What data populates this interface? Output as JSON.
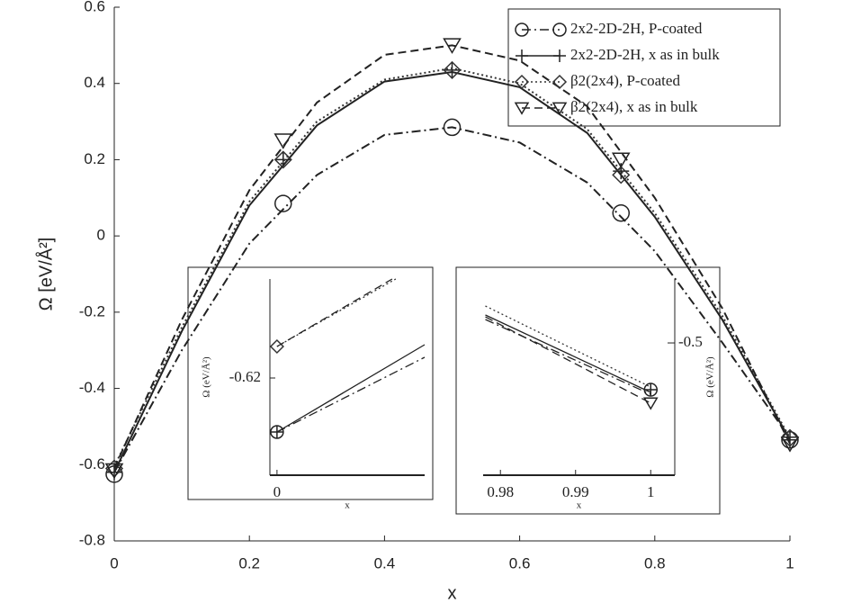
{
  "chart_data": [
    {
      "type": "line",
      "x_label": "x",
      "y_label": "Ω [eV/Å²]",
      "xlim": [
        0,
        1
      ],
      "ylim": [
        -0.8,
        0.6
      ],
      "xticks": [
        0,
        0.2,
        0.4,
        0.6,
        0.8,
        1
      ],
      "yticks": [
        -0.8,
        -0.6,
        -0.4,
        -0.2,
        0,
        0.2,
        0.4,
        0.6
      ],
      "legend": "upper right",
      "series": [
        {
          "name": "2x2-2D-2H, P-coated",
          "color": "#222",
          "dash": "dashdot",
          "marker": "circle",
          "x": [
            0,
            0.1,
            0.2,
            0.3,
            0.4,
            0.5,
            0.6,
            0.7,
            0.8,
            0.9,
            1
          ],
          "values": [
            -0.62,
            -0.3,
            -0.02,
            0.16,
            0.265,
            0.285,
            0.245,
            0.14,
            -0.04,
            -0.28,
            -0.53
          ],
          "marker_x": [
            0,
            0.25,
            0.5,
            0.75,
            1
          ],
          "marker_values": [
            -0.625,
            0.085,
            0.285,
            0.06,
            -0.535
          ]
        },
        {
          "name": "2x2-2D-2H, x as in bulk",
          "color": "#222",
          "dash": "solid",
          "marker": "plus",
          "x": [
            0,
            0.1,
            0.2,
            0.3,
            0.4,
            0.5,
            0.6,
            0.7,
            0.8,
            0.9,
            1
          ],
          "values": [
            -0.62,
            -0.25,
            0.08,
            0.29,
            0.405,
            0.43,
            0.39,
            0.27,
            0.05,
            -0.22,
            -0.535
          ],
          "marker_x": [
            0,
            0.25,
            0.5,
            0.75,
            1
          ],
          "marker_values": [
            -0.62,
            0.2,
            0.435,
            0.17,
            -0.535
          ]
        },
        {
          "name": "β2(2x4), P-coated",
          "color": "#333",
          "dash": "dotted",
          "marker": "diamond",
          "x": [
            0,
            0.1,
            0.2,
            0.3,
            0.4,
            0.5,
            0.6,
            0.7,
            0.8,
            0.9,
            1
          ],
          "values": [
            -0.605,
            -0.24,
            0.09,
            0.3,
            0.41,
            0.44,
            0.4,
            0.28,
            0.06,
            -0.21,
            -0.53
          ],
          "marker_x": [
            0,
            0.25,
            0.5,
            0.75,
            1
          ],
          "marker_values": [
            -0.61,
            0.2,
            0.435,
            0.16,
            -0.53
          ]
        },
        {
          "name": "β2(2x4), x as in bulk",
          "color": "#222",
          "dash": "dashed",
          "marker": "triangle",
          "x": [
            0,
            0.1,
            0.2,
            0.3,
            0.4,
            0.5,
            0.6,
            0.7,
            0.8,
            0.9,
            1
          ],
          "values": [
            -0.61,
            -0.22,
            0.12,
            0.35,
            0.475,
            0.5,
            0.46,
            0.34,
            0.1,
            -0.19,
            -0.545
          ],
          "marker_x": [
            0,
            0.25,
            0.5,
            0.75,
            1
          ],
          "marker_values": [
            -0.615,
            0.25,
            0.5,
            0.2,
            -0.545
          ]
        }
      ]
    },
    {
      "type": "line",
      "x_label": "x",
      "y_label": "Ω (eV/Å²)",
      "xlim": [
        -0.0012,
        0.025
      ],
      "ylim": [
        -0.6308,
        -0.609
      ],
      "xticks": [
        0
      ],
      "yticks": [
        -0.62
      ],
      "y_axis_side": "left",
      "series": [
        {
          "color": "#222",
          "dash": "dashdot",
          "marker": "circle",
          "x": [
            0,
            0.025
          ],
          "values": [
            -0.626,
            -0.6177
          ],
          "marker_x": [
            0
          ],
          "marker_values": [
            -0.626
          ]
        },
        {
          "color": "#222",
          "dash": "solid",
          "marker": "plus",
          "x": [
            0,
            0.025
          ],
          "values": [
            -0.626,
            -0.6163
          ],
          "marker_x": [
            0
          ],
          "marker_values": [
            -0.626
          ]
        },
        {
          "color": "#333",
          "dash": "dotted",
          "marker": "diamond",
          "x": [
            0,
            0.0201
          ],
          "values": [
            -0.6165,
            -0.609
          ],
          "marker_x": [
            0
          ],
          "marker_values": [
            -0.6165
          ]
        },
        {
          "color": "#222",
          "dash": "dashed",
          "marker": "triangle",
          "x": [
            0,
            0.0195
          ],
          "values": [
            -0.6165,
            -0.609
          ],
          "marker_x": [],
          "marker_values": []
        }
      ]
    },
    {
      "type": "line",
      "x_label": "x",
      "y_label": "Ω (eV/Å²)",
      "xlim": [
        0.9777,
        1.0032
      ],
      "ylim": [
        -0.5989,
        -0.4522
      ],
      "xticks": [
        0.98,
        0.99,
        1
      ],
      "yticks": [
        -0.5
      ],
      "y_axis_side": "right",
      "series": [
        {
          "color": "#222",
          "dash": "dashdot",
          "marker": "circle",
          "x": [
            0.978,
            1
          ],
          "values": [
            -0.4825,
            -0.5384
          ],
          "marker_x": [
            1
          ],
          "marker_values": [
            -0.535
          ]
        },
        {
          "color": "#222",
          "dash": "solid",
          "marker": "plus",
          "x": [
            0.978,
            1
          ],
          "values": [
            -0.4791,
            -0.537
          ],
          "marker_x": [
            1
          ],
          "marker_values": [
            -0.535
          ]
        },
        {
          "color": "#333",
          "dash": "dotted",
          "marker": "diamond",
          "x": [
            0.978,
            1
          ],
          "values": [
            -0.4724,
            -0.533
          ],
          "marker_x": [],
          "marker_values": []
        },
        {
          "color": "#222",
          "dash": "dashed",
          "marker": "triangle",
          "x": [
            0.978,
            1
          ],
          "values": [
            -0.4805,
            -0.545
          ],
          "marker_x": [
            1
          ],
          "marker_values": [
            -0.545
          ]
        }
      ]
    }
  ]
}
